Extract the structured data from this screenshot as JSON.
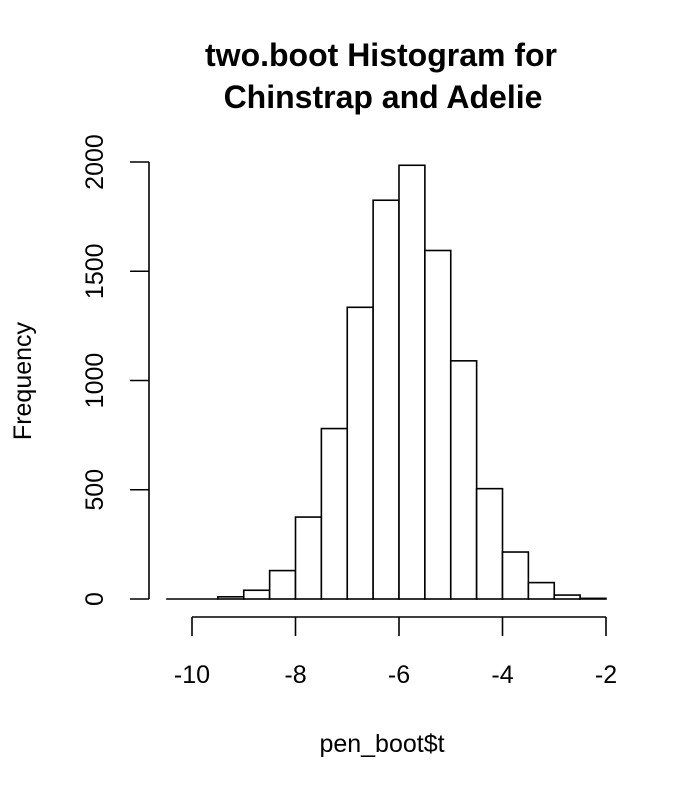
{
  "chart_data": {
    "type": "bar",
    "title_lines": [
      "two.boot Histogram for",
      "Chinstrap and Adelie"
    ],
    "xlabel": "pen_boot$t",
    "ylabel": "Frequency",
    "bin_width": 0.5,
    "bins": [
      {
        "start": -10.5,
        "end": -10.0,
        "count": 0
      },
      {
        "start": -10.0,
        "end": -9.5,
        "count": 2
      },
      {
        "start": -9.5,
        "end": -9.0,
        "count": 10
      },
      {
        "start": -9.0,
        "end": -8.5,
        "count": 40
      },
      {
        "start": -8.5,
        "end": -8.0,
        "count": 130
      },
      {
        "start": -8.0,
        "end": -7.5,
        "count": 375
      },
      {
        "start": -7.5,
        "end": -7.0,
        "count": 780
      },
      {
        "start": -7.0,
        "end": -6.5,
        "count": 1335
      },
      {
        "start": -6.5,
        "end": -6.0,
        "count": 1825
      },
      {
        "start": -6.0,
        "end": -5.5,
        "count": 1985
      },
      {
        "start": -5.5,
        "end": -5.0,
        "count": 1595
      },
      {
        "start": -5.0,
        "end": -4.5,
        "count": 1090
      },
      {
        "start": -4.5,
        "end": -4.0,
        "count": 505
      },
      {
        "start": -4.0,
        "end": -3.5,
        "count": 215
      },
      {
        "start": -3.5,
        "end": -3.0,
        "count": 75
      },
      {
        "start": -3.0,
        "end": -2.5,
        "count": 18
      },
      {
        "start": -2.5,
        "end": -2.0,
        "count": 3
      }
    ],
    "x_ticks": [
      -10,
      -8,
      -6,
      -4,
      -2
    ],
    "x_tick_labels": [
      "-10",
      "-8",
      "-6",
      "-4",
      "-2"
    ],
    "y_ticks": [
      0,
      500,
      1000,
      1500,
      2000
    ],
    "y_tick_labels": [
      "0",
      "500",
      "1000",
      "1500",
      "2000"
    ],
    "xlim": [
      -10.5,
      -2
    ],
    "ylim": [
      0,
      2000
    ],
    "grid": false,
    "legend": "none"
  }
}
